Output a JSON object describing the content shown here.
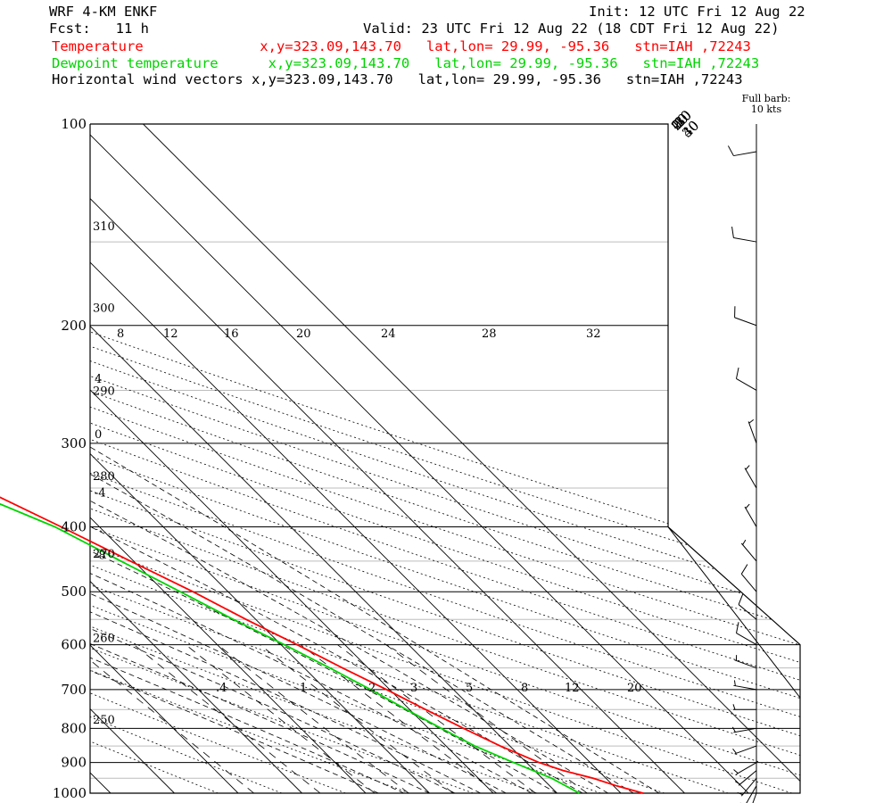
{
  "header": {
    "model": "WRF 4-KM ENKF",
    "init": "Init: 12 UTC Fri 12 Aug 22",
    "fcst": "Fcst:   11 h",
    "valid": "Valid: 23 UTC Fri 12 Aug 22 (18 CDT Fri 12 Aug 22)",
    "temp_line": "Temperature              x,y=323.09,143.70   lat,lon= 29.99, -95.36   stn=IAH ,72243",
    "dew_line": "Dewpoint temperature      x,y=323.09,143.70   lat,lon= 29.99, -95.36   stn=IAH ,72243",
    "wind_line": "Horizontal wind vectors x,y=323.09,143.70   lat,lon= 29.99, -95.36   stn=IAH ,72243"
  },
  "colors": {
    "temperature": "#ff0000",
    "dewpoint": "#00d400",
    "isotherm": "#000000"
  },
  "chart_data": {
    "type": "line",
    "y_scale": "log-pressure",
    "ylim": [
      1000,
      100
    ],
    "xlim": [
      -45,
      40
    ],
    "pressure_labels": [
      100,
      200,
      300,
      400,
      500,
      600,
      700,
      800,
      900,
      1000
    ],
    "isotherm_labels": [
      "-100",
      "-90",
      "-80",
      "-70",
      "-60",
      "-50",
      "-40",
      "-30",
      "-20",
      "-10",
      "0",
      "10",
      "20",
      "30",
      "40"
    ],
    "theta_labels": [
      {
        "text": "320",
        "p": 100
      },
      {
        "text": "330",
        "p": 100
      },
      {
        "text": "340",
        "p": 100
      },
      {
        "text": "350",
        "p": 100
      },
      {
        "text": "360",
        "p": 100
      },
      {
        "text": "370",
        "p": 100
      },
      {
        "text": "380",
        "p": 100
      },
      {
        "text": "390",
        "p": 100
      },
      {
        "text": "400",
        "p": 100
      },
      {
        "text": "410",
        "p": 100
      },
      {
        "text": "420",
        "p": 100
      },
      {
        "text": "430",
        "p": 100
      },
      {
        "text": "440",
        "p": 100
      },
      {
        "text": "310",
        "p": 142
      },
      {
        "text": "300",
        "p": 188
      },
      {
        "text": "290",
        "p": 250
      },
      {
        "text": "280",
        "p": 335
      },
      {
        "text": "270",
        "p": 438
      },
      {
        "text": "260",
        "p": 585
      },
      {
        "text": "250",
        "p": 775
      }
    ],
    "thetae_labels": [
      {
        "text": "8",
        "p": 205
      },
      {
        "text": "12",
        "p": 205
      },
      {
        "text": "16",
        "p": 205
      },
      {
        "text": "20",
        "p": 205
      },
      {
        "text": "24",
        "p": 205
      },
      {
        "text": "28",
        "p": 205
      },
      {
        "text": "32",
        "p": 205
      },
      {
        "text": "4",
        "p": 240
      },
      {
        "text": "0",
        "p": 290
      },
      {
        "text": "-4",
        "p": 355
      },
      {
        "text": "-8",
        "p": 440
      }
    ],
    "mixing_ratio_labels": [
      ".4",
      "1",
      "2",
      "3",
      "5",
      "8",
      "12",
      "20"
    ],
    "series": [
      {
        "name": "Temperature",
        "points": [
          {
            "p": 1000,
            "t": 33.5
          },
          {
            "p": 975,
            "t": 30.5
          },
          {
            "p": 950,
            "t": 28.0
          },
          {
            "p": 925,
            "t": 24.5
          },
          {
            "p": 900,
            "t": 22.0
          },
          {
            "p": 850,
            "t": 18.5
          },
          {
            "p": 800,
            "t": 15.5
          },
          {
            "p": 750,
            "t": 12.5
          },
          {
            "p": 700,
            "t": 9.5
          },
          {
            "p": 650,
            "t": 6.0
          },
          {
            "p": 600,
            "t": 2.5
          },
          {
            "p": 550,
            "t": -1.5
          },
          {
            "p": 500,
            "t": -5.5
          },
          {
            "p": 450,
            "t": -10.5
          },
          {
            "p": 400,
            "t": -16.0
          },
          {
            "p": 350,
            "t": -22.5
          },
          {
            "p": 300,
            "t": -30.5
          },
          {
            "p": 250,
            "t": -40.0
          },
          {
            "p": 200,
            "t": -52.0
          },
          {
            "p": 185,
            "t": -57.5
          },
          {
            "p": 165,
            "t": -63.0
          },
          {
            "p": 150,
            "t": -67.5
          },
          {
            "p": 140,
            "t": -70.5
          },
          {
            "p": 120,
            "t": -72.0
          },
          {
            "p": 110,
            "t": -73.5
          },
          {
            "p": 100,
            "t": -75.0
          }
        ]
      },
      {
        "name": "Dewpoint temperature",
        "points": [
          {
            "p": 1000,
            "t": 23.5
          },
          {
            "p": 950,
            "t": 21.5
          },
          {
            "p": 900,
            "t": 18.0
          },
          {
            "p": 850,
            "t": 14.5
          },
          {
            "p": 800,
            "t": 12.0
          },
          {
            "p": 750,
            "t": 9.5
          },
          {
            "p": 700,
            "t": 7.0
          },
          {
            "p": 650,
            "t": 4.0
          },
          {
            "p": 600,
            "t": 0.5
          },
          {
            "p": 550,
            "t": -3.5
          },
          {
            "p": 500,
            "t": -7.5
          },
          {
            "p": 450,
            "t": -12.0
          },
          {
            "p": 400,
            "t": -17.0
          },
          {
            "p": 350,
            "t": -25.5
          },
          {
            "p": 300,
            "t": -34.0
          },
          {
            "p": 250,
            "t": -43.0
          },
          {
            "p": 200,
            "t": -54.5
          },
          {
            "p": 185,
            "t": -59.0
          },
          {
            "p": 165,
            "t": -63.5
          },
          {
            "p": 150,
            "t": -68.0
          },
          {
            "p": 140,
            "t": -75.5
          },
          {
            "p": 120,
            "t": -79.0
          },
          {
            "p": 100,
            "t": -83.0
          }
        ]
      }
    ],
    "wind_barbs": [
      {
        "p": 1000,
        "dir": 200,
        "spd": 5
      },
      {
        "p": 975,
        "dir": 210,
        "spd": 5
      },
      {
        "p": 950,
        "dir": 220,
        "spd": 5
      },
      {
        "p": 925,
        "dir": 230,
        "spd": 5
      },
      {
        "p": 900,
        "dir": 240,
        "spd": 5
      },
      {
        "p": 850,
        "dir": 250,
        "spd": 5
      },
      {
        "p": 800,
        "dir": 260,
        "spd": 5
      },
      {
        "p": 750,
        "dir": 270,
        "spd": 5
      },
      {
        "p": 700,
        "dir": 280,
        "spd": 5
      },
      {
        "p": 650,
        "dir": 290,
        "spd": 5
      },
      {
        "p": 600,
        "dir": 300,
        "spd": 10
      },
      {
        "p": 550,
        "dir": 310,
        "spd": 10
      },
      {
        "p": 500,
        "dir": 320,
        "spd": 10
      },
      {
        "p": 450,
        "dir": 320,
        "spd": 5
      },
      {
        "p": 400,
        "dir": 330,
        "spd": 5
      },
      {
        "p": 350,
        "dir": 330,
        "spd": 5
      },
      {
        "p": 300,
        "dir": 340,
        "spd": 5
      },
      {
        "p": 250,
        "dir": 300,
        "spd": 10
      },
      {
        "p": 200,
        "dir": 290,
        "spd": 10
      },
      {
        "p": 150,
        "dir": 280,
        "spd": 10
      },
      {
        "p": 110,
        "dir": 260,
        "spd": 10
      }
    ],
    "barb_key": {
      "title": "Full barb:",
      "value": "10 kts"
    }
  }
}
